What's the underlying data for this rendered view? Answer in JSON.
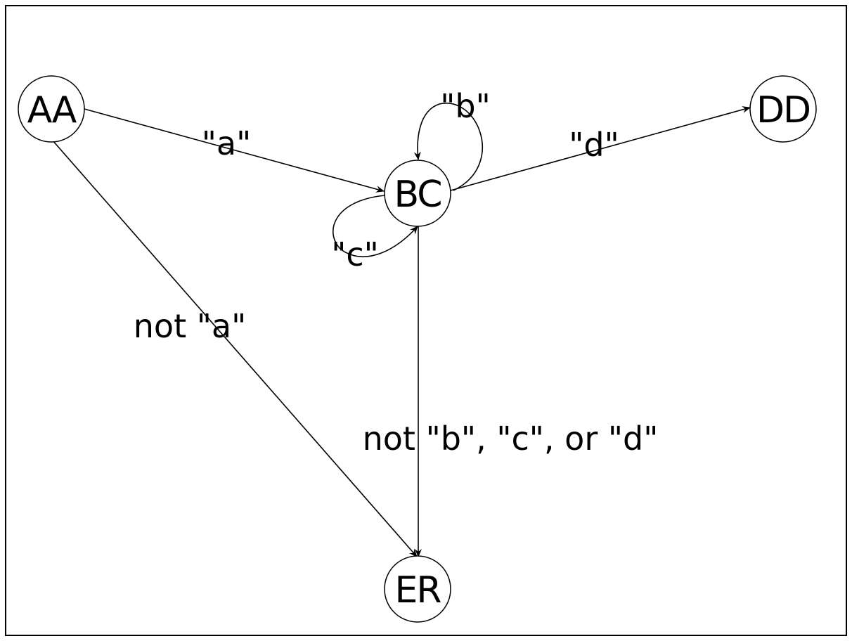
{
  "diagram": {
    "type": "state-machine",
    "nodes": [
      {
        "id": "AA",
        "label": "AA"
      },
      {
        "id": "BC",
        "label": "BC"
      },
      {
        "id": "DD",
        "label": "DD"
      },
      {
        "id": "ER",
        "label": "ER"
      }
    ],
    "edges": [
      {
        "from": "AA",
        "to": "BC",
        "label": "\"a\""
      },
      {
        "from": "BC",
        "to": "BC",
        "label": "\"b\""
      },
      {
        "from": "BC",
        "to": "BC",
        "label": "\"c\""
      },
      {
        "from": "BC",
        "to": "DD",
        "label": "\"d\""
      },
      {
        "from": "AA",
        "to": "ER",
        "label": "not \"a\""
      },
      {
        "from": "BC",
        "to": "ER",
        "label": "not \"b\", \"c\", or \"d\""
      }
    ]
  }
}
